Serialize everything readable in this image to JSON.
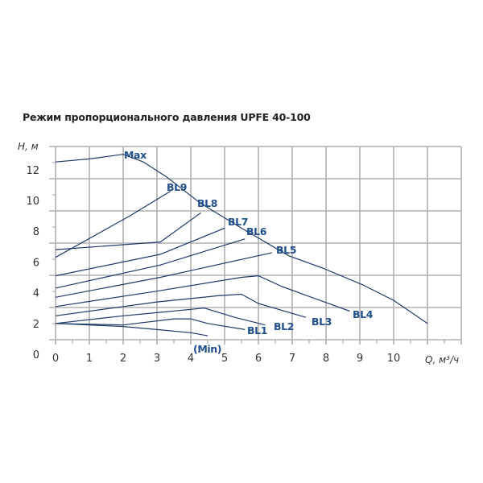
{
  "title": "Режим пропорционального давления UPFE 40-100",
  "chart_data": {
    "type": "line",
    "title": "Режим пропорционального давления UPFE 40-100",
    "xlabel": "Q, м³/ч",
    "ylabel": "H, м",
    "xlim": [
      0,
      12
    ],
    "ylim": [
      0,
      14
    ],
    "x_ticks": [
      "0",
      "1",
      "2",
      "3",
      "4",
      "5",
      "6",
      "7",
      "8",
      "9",
      "10"
    ],
    "y_ticks": [
      "0",
      "2",
      "4",
      "6",
      "8",
      "10",
      "12"
    ],
    "grid": true,
    "legend": "inline labels",
    "colors": {
      "curve": "#1f3a68",
      "label": "#1f4f8c",
      "grid": "#b0b0b0"
    },
    "series": [
      {
        "name": "Max",
        "points": [
          [
            0,
            12.5
          ],
          [
            1,
            12.7
          ],
          [
            2,
            13.0
          ],
          [
            2.6,
            12.5
          ],
          [
            3.3,
            11.5
          ],
          [
            4.3,
            9.8
          ],
          [
            5.5,
            8.2
          ],
          [
            6.9,
            6.4
          ],
          [
            7.9,
            5.6
          ],
          [
            9.1,
            4.5
          ],
          [
            10,
            3.5
          ],
          [
            11,
            2.0
          ]
        ]
      },
      {
        "name": "BL9",
        "points": [
          [
            0,
            6.3
          ],
          [
            2.2,
            9.0
          ],
          [
            3.4,
            10.6
          ]
        ]
      },
      {
        "name": "BL8",
        "points": [
          [
            0,
            6.8
          ],
          [
            3.1,
            7.3
          ],
          [
            4.3,
            9.2
          ]
        ]
      },
      {
        "name": "BL7",
        "points": [
          [
            0,
            5.1
          ],
          [
            3.1,
            6.5
          ],
          [
            5.0,
            8.2
          ]
        ]
      },
      {
        "name": "BL6",
        "points": [
          [
            0,
            4.3
          ],
          [
            3.1,
            5.8
          ],
          [
            5.6,
            7.5
          ]
        ]
      },
      {
        "name": "BL5",
        "points": [
          [
            0,
            3.7
          ],
          [
            3.1,
            5.0
          ],
          [
            6.4,
            6.6
          ]
        ]
      },
      {
        "name": "BL4",
        "points": [
          [
            0,
            3.1
          ],
          [
            3.0,
            4.1
          ],
          [
            5.5,
            5.0
          ],
          [
            6.0,
            5.1
          ],
          [
            6.7,
            4.4
          ],
          [
            8.7,
            2.8
          ]
        ]
      },
      {
        "name": "BL3",
        "points": [
          [
            0,
            2.5
          ],
          [
            3.0,
            3.4
          ],
          [
            4.8,
            3.8
          ],
          [
            5.5,
            3.9
          ],
          [
            6.0,
            3.3
          ],
          [
            7.4,
            2.4
          ]
        ]
      },
      {
        "name": "BL2",
        "points": [
          [
            0,
            2.0
          ],
          [
            2.0,
            2.5
          ],
          [
            3.0,
            2.7
          ],
          [
            4.4,
            3.0
          ],
          [
            5.3,
            2.4
          ],
          [
            6.2,
            1.9
          ]
        ]
      },
      {
        "name": "BL1",
        "points": [
          [
            0,
            2.0
          ],
          [
            2.0,
            1.9
          ],
          [
            3.5,
            2.3
          ],
          [
            4.0,
            2.3
          ],
          [
            4.5,
            2.0
          ],
          [
            5.6,
            1.6
          ]
        ]
      },
      {
        "name": "(Min)",
        "points": [
          [
            0,
            2.0
          ],
          [
            1,
            1.9
          ],
          [
            2,
            1.8
          ],
          [
            3,
            1.6
          ],
          [
            4,
            1.4
          ],
          [
            4.5,
            1.2
          ]
        ]
      }
    ]
  },
  "labels": {
    "y_axis": "H, м",
    "x_axis": "Q, м³/ч",
    "curves": [
      "Max",
      "BL9",
      "BL8",
      "BL7",
      "BL6",
      "BL5",
      "BL4",
      "BL3",
      "BL2",
      "BL1",
      "(Min)"
    ]
  }
}
